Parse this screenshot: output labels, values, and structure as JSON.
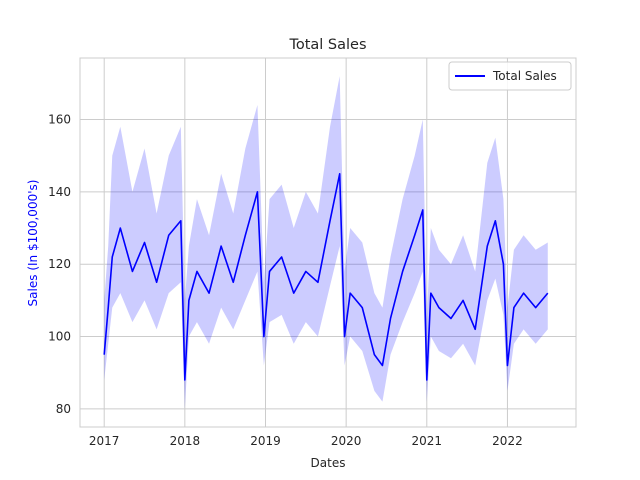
{
  "chart_data": {
    "type": "line",
    "title": "Total Sales",
    "xlabel": "Dates",
    "ylabel": "Sales (In $100,000's)",
    "ylabel_color": "#0000ff",
    "xlim": [
      2016.7,
      2022.85
    ],
    "ylim": [
      75,
      177
    ],
    "x_ticks": [
      "2017",
      "2018",
      "2019",
      "2020",
      "2021",
      "2022"
    ],
    "y_ticks": [
      80,
      100,
      120,
      140,
      160
    ],
    "grid": true,
    "legend": {
      "placement": "top-right",
      "entries": [
        "Total Sales"
      ]
    },
    "series": [
      {
        "name": "Total Sales",
        "color": "#0000ff",
        "band_color": "#0000ff",
        "band_opacity": 0.2,
        "x": [
          2017.0,
          2017.05,
          2017.1,
          2017.2,
          2017.35,
          2017.5,
          2017.65,
          2017.8,
          2017.95,
          2018.0,
          2018.05,
          2018.15,
          2018.3,
          2018.45,
          2018.6,
          2018.75,
          2018.9,
          2018.98,
          2019.05,
          2019.2,
          2019.35,
          2019.5,
          2019.65,
          2019.8,
          2019.92,
          2019.98,
          2020.05,
          2020.2,
          2020.35,
          2020.45,
          2020.55,
          2020.7,
          2020.85,
          2020.95,
          2021.0,
          2021.05,
          2021.15,
          2021.3,
          2021.45,
          2021.6,
          2021.75,
          2021.85,
          2021.95,
          2022.0,
          2022.08,
          2022.2,
          2022.35,
          2022.5
        ],
        "y": [
          95,
          108,
          122,
          130,
          118,
          126,
          115,
          128,
          132,
          88,
          110,
          118,
          112,
          125,
          115,
          128,
          140,
          100,
          118,
          122,
          112,
          118,
          115,
          132,
          145,
          100,
          112,
          108,
          95,
          92,
          105,
          118,
          128,
          135,
          88,
          112,
          108,
          105,
          110,
          102,
          125,
          132,
          120,
          92,
          108,
          112,
          108,
          112
        ],
        "y_lower": [
          88,
          98,
          108,
          112,
          104,
          110,
          102,
          112,
          115,
          80,
          100,
          104,
          98,
          108,
          102,
          110,
          118,
          92,
          104,
          106,
          98,
          104,
          100,
          114,
          125,
          92,
          100,
          96,
          85,
          82,
          95,
          104,
          112,
          118,
          82,
          100,
          96,
          94,
          98,
          92,
          110,
          116,
          106,
          85,
          98,
          102,
          98,
          102
        ],
        "y_upper": [
          110,
          125,
          150,
          158,
          140,
          152,
          134,
          150,
          158,
          110,
          125,
          138,
          128,
          145,
          134,
          152,
          164,
          115,
          138,
          142,
          130,
          140,
          134,
          158,
          172,
          118,
          130,
          126,
          112,
          108,
          122,
          138,
          150,
          160,
          105,
          130,
          124,
          120,
          128,
          118,
          148,
          155,
          138,
          108,
          124,
          128,
          124,
          126
        ]
      }
    ]
  }
}
